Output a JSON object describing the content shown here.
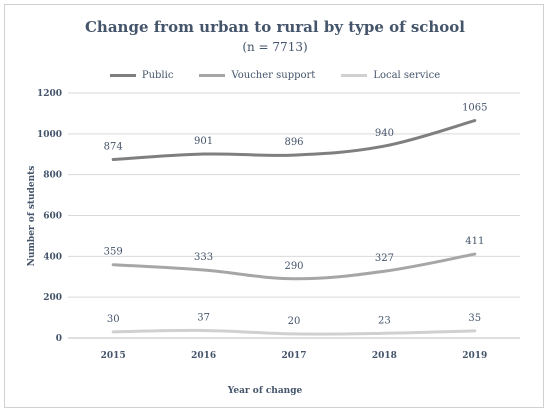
{
  "chart_data": {
    "type": "line",
    "title": "Change from urban to rural by type of school",
    "subtitle": "(n = 7713)",
    "xlabel": "Year of change",
    "ylabel": "Number of students",
    "categories": [
      "2015",
      "2016",
      "2017",
      "2018",
      "2019"
    ],
    "ylim": [
      0,
      1200
    ],
    "yticks": [
      0,
      200,
      400,
      600,
      800,
      1000,
      1200
    ],
    "grid": true,
    "legend_position": "top",
    "series": [
      {
        "name": "Public",
        "color": "#7f7f7f",
        "values": [
          874,
          901,
          896,
          940,
          1065
        ]
      },
      {
        "name": "Voucher support",
        "color": "#a6a6a6",
        "values": [
          359,
          333,
          290,
          327,
          411
        ]
      },
      {
        "name": "Local service",
        "color": "#d0d0d0",
        "values": [
          30,
          37,
          20,
          23,
          35
        ]
      }
    ]
  }
}
